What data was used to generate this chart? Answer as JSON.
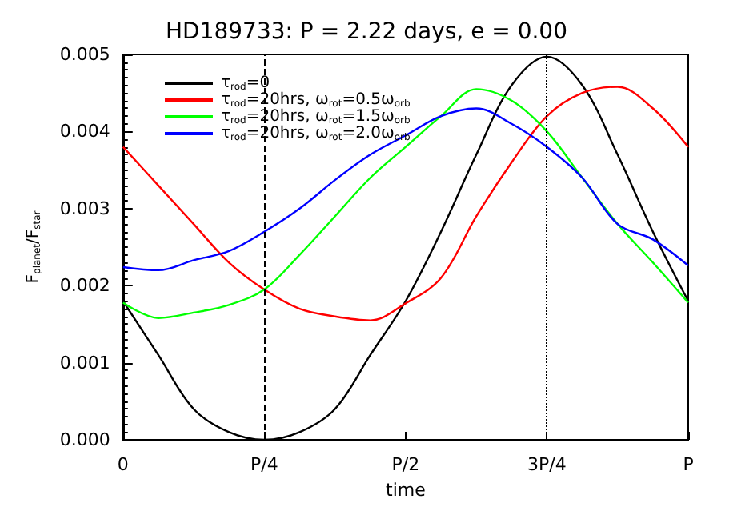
{
  "chart_data": {
    "type": "line",
    "title": "HD189733: P = 2.22 days, e = 0.00",
    "xlabel": "time",
    "ylabel": "F$_{planet}$/F$_{star}$",
    "categories": [
      "0",
      null,
      null,
      null,
      "P/4",
      null,
      null,
      null,
      "P/2",
      null,
      null,
      null,
      "3P/4",
      null,
      null,
      null,
      "P"
    ],
    "series": [
      {
        "name": "τ$_{rod}$=0",
        "color": "#000000",
        "values": [
          0.0018,
          0.0011,
          0.0004,
          0.0001,
          0,
          0.0001,
          0.0004,
          0.0011,
          0.0018,
          0.0027,
          0.0037,
          0.0046,
          0.00497,
          0.0046,
          0.0037,
          0.0027,
          0.0018
        ]
      },
      {
        "name": "τ$_{rod}$=20hrs, ω$_{rot}$=0.5ω$_{orb}$",
        "color": "#ff0000",
        "values": [
          0.0038,
          0.0033,
          0.0028,
          0.0023,
          0.00195,
          0.0017,
          0.0016,
          0.00155,
          0.00177,
          0.0021,
          0.0029,
          0.0036,
          0.0042,
          0.0045,
          0.00458,
          0.0043,
          0.0038
        ]
      },
      {
        "name": "τ$_{rod}$=20hrs, ω$_{rot}$=1.5ω$_{orb}$",
        "color": "#00ff00",
        "values": [
          0.00178,
          0.00158,
          0.00165,
          0.00175,
          0.00195,
          0.0024,
          0.0029,
          0.0034,
          0.0038,
          0.0042,
          0.00455,
          0.0044,
          0.004,
          0.0034,
          0.0028,
          0.0023,
          0.00178
        ]
      },
      {
        "name": "τ$_{rod}$=20hrs, ω$_{rot}$=2.0ω$_{orb}$",
        "color": "#0000ff",
        "values": [
          0.00224,
          0.0022,
          0.00233,
          0.00245,
          0.0027,
          0.003,
          0.00337,
          0.0037,
          0.00395,
          0.0042,
          0.0043,
          0.0041,
          0.0038,
          0.0034,
          0.0028,
          0.0026,
          0.00226
        ]
      }
    ],
    "ylim": [
      0,
      0.005
    ],
    "yticks": [
      {
        "value": 0,
        "label": "0.000"
      },
      0.001,
      0.002,
      0.003,
      0.004,
      0.005
    ],
    "ref_lines": [
      {
        "axis": "x",
        "value": "P/4",
        "color": "#000000",
        "line_style": "dashed"
      },
      {
        "axis": "x",
        "value": "3P/4",
        "color": "#000000",
        "line_style": "dotted"
      }
    ],
    "legend": "top left",
    "grid": false,
    "marker": "none",
    "line_style": "solid"
  }
}
